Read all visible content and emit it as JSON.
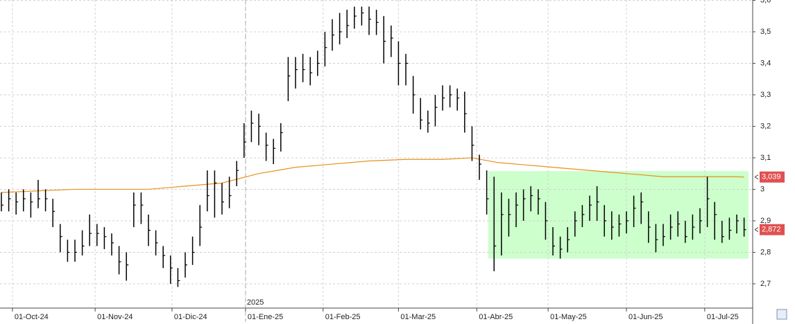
{
  "chart_data": {
    "type": "ohlc",
    "x": [
      0,
      2,
      4,
      6,
      8,
      10,
      12,
      14,
      16,
      18,
      20,
      22,
      24,
      26,
      28,
      30,
      32,
      34,
      36,
      38,
      40,
      42,
      44,
      46,
      48,
      50,
      52,
      54,
      56,
      58,
      60,
      62,
      64,
      66,
      68,
      70,
      72,
      74,
      76,
      78,
      80,
      82,
      84,
      86,
      88,
      90,
      92,
      94,
      96,
      98,
      100,
      102,
      104,
      106,
      108,
      110,
      112,
      114,
      116,
      118,
      120,
      122,
      124,
      126,
      128,
      130,
      132,
      134,
      136,
      138,
      140,
      142,
      144,
      146,
      148,
      150,
      152,
      154,
      156,
      158,
      160,
      162,
      164,
      166,
      168,
      170,
      172,
      174,
      176,
      178,
      180,
      182,
      184,
      186,
      188,
      190,
      192,
      194,
      196,
      198,
      200,
      202
    ],
    "high": [
      2.99,
      3.0,
      2.99,
      3.0,
      2.99,
      3.03,
      3.0,
      2.97,
      2.89,
      2.84,
      2.84,
      2.87,
      2.92,
      2.89,
      2.88,
      2.86,
      2.82,
      2.8,
      2.99,
      2.99,
      2.92,
      2.87,
      2.82,
      2.79,
      2.75,
      2.8,
      2.85,
      2.95,
      3.06,
      3.06,
      3.02,
      3.04,
      3.09,
      3.21,
      3.25,
      3.24,
      3.18,
      3.16,
      3.21,
      3.42,
      3.42,
      3.43,
      3.42,
      3.44,
      3.5,
      3.54,
      3.56,
      3.57,
      3.58,
      3.58,
      3.58,
      3.57,
      3.55,
      3.52,
      3.47,
      3.43,
      3.36,
      3.29,
      3.25,
      3.3,
      3.33,
      3.33,
      3.32,
      3.31,
      3.2,
      3.11,
      3.06,
      3.04,
      2.99,
      2.97,
      2.99,
      3.0,
      3.01,
      3.0,
      2.96,
      2.88,
      2.85,
      2.88,
      2.93,
      2.95,
      2.98,
      3.01,
      2.95,
      2.93,
      2.92,
      2.93,
      2.98,
      2.99,
      2.93,
      2.89,
      2.89,
      2.92,
      2.93,
      2.9,
      2.92,
      2.94,
      3.04,
      2.96,
      2.9,
      2.91,
      2.92,
      2.91
    ],
    "low": [
      2.93,
      2.93,
      2.92,
      2.93,
      2.91,
      2.94,
      2.93,
      2.88,
      2.8,
      2.77,
      2.77,
      2.79,
      2.82,
      2.82,
      2.81,
      2.79,
      2.73,
      2.71,
      2.88,
      2.89,
      2.82,
      2.79,
      2.75,
      2.7,
      2.69,
      2.72,
      2.76,
      2.82,
      2.93,
      2.91,
      2.92,
      2.94,
      3.01,
      3.1,
      3.15,
      3.14,
      3.09,
      3.08,
      3.12,
      3.28,
      3.32,
      3.34,
      3.33,
      3.36,
      3.39,
      3.44,
      3.46,
      3.48,
      3.51,
      3.52,
      3.49,
      3.49,
      3.4,
      3.42,
      3.33,
      3.33,
      3.24,
      3.19,
      3.18,
      3.2,
      3.25,
      3.26,
      3.25,
      3.18,
      3.09,
      3.03,
      2.92,
      2.74,
      2.79,
      2.85,
      2.88,
      2.9,
      2.93,
      2.92,
      2.84,
      2.79,
      2.78,
      2.8,
      2.85,
      2.88,
      2.9,
      2.9,
      2.85,
      2.84,
      2.85,
      2.86,
      2.88,
      2.89,
      2.83,
      2.8,
      2.82,
      2.84,
      2.85,
      2.83,
      2.84,
      2.86,
      2.88,
      2.84,
      2.83,
      2.84,
      2.86,
      2.85
    ],
    "close": [
      2.95,
      2.97,
      2.96,
      2.97,
      2.96,
      2.97,
      2.97,
      2.93,
      2.85,
      2.8,
      2.8,
      2.82,
      2.86,
      2.86,
      2.85,
      2.83,
      2.77,
      2.76,
      2.95,
      2.95,
      2.87,
      2.83,
      2.79,
      2.75,
      2.71,
      2.76,
      2.8,
      2.88,
      2.98,
      3.02,
      2.96,
      2.98,
      3.06,
      3.15,
      3.21,
      3.2,
      3.14,
      3.13,
      3.18,
      3.36,
      3.38,
      3.38,
      3.37,
      3.4,
      3.45,
      3.49,
      3.5,
      3.52,
      3.55,
      3.56,
      3.54,
      3.53,
      3.47,
      3.48,
      3.4,
      3.4,
      3.3,
      3.22,
      3.21,
      3.26,
      3.29,
      3.3,
      3.29,
      3.24,
      3.14,
      3.08,
      2.97,
      2.82,
      2.92,
      2.92,
      2.95,
      2.97,
      2.98,
      2.97,
      2.9,
      2.82,
      2.81,
      2.84,
      2.9,
      2.92,
      2.95,
      2.96,
      2.9,
      2.88,
      2.89,
      2.9,
      2.94,
      2.96,
      2.88,
      2.84,
      2.85,
      2.88,
      2.89,
      2.85,
      2.88,
      2.9,
      2.97,
      2.92,
      2.85,
      2.87,
      2.9,
      2.872
    ],
    "bar_color": "#000000",
    "moving_average": {
      "color": "#e8901a",
      "x": [
        0,
        20,
        40,
        60,
        70,
        80,
        90,
        100,
        110,
        120,
        128,
        135,
        150,
        170,
        180,
        200,
        202
      ],
      "values": [
        2.99,
        3.0,
        3.0,
        3.02,
        3.05,
        3.07,
        3.08,
        3.09,
        3.095,
        3.095,
        3.1,
        3.085,
        3.07,
        3.05,
        3.04,
        3.04,
        3.039
      ]
    },
    "range_box": {
      "color": "#ccffcc",
      "x": [
        132.4,
        203.2
      ],
      "y": [
        2.78,
        3.058
      ]
    },
    "price_markers": [
      {
        "value": 3.039,
        "label": "3,039"
      },
      {
        "value": 2.872,
        "label": "2,872"
      }
    ],
    "marker_color": "#e05050",
    "year_marker": {
      "value": 66.4,
      "label": "2025"
    },
    "xlim": [
      0,
      204.3
    ],
    "xticks": [
      {
        "value": 3,
        "label": "01-Oct-24"
      },
      {
        "value": 25.5,
        "label": "01-Nov-24"
      },
      {
        "value": 46.4,
        "label": "01-Dic-24"
      },
      {
        "value": 66.4,
        "label": "01-Ene-25"
      },
      {
        "value": 87.5,
        "label": "01-Feb-25"
      },
      {
        "value": 108,
        "label": "01-Mar-25"
      },
      {
        "value": 129.3,
        "label": "01-Abr-25"
      },
      {
        "value": 148.7,
        "label": "01-May-25"
      },
      {
        "value": 170,
        "label": "01-Jun-25"
      },
      {
        "value": 191.3,
        "label": "01-Jul-25"
      }
    ],
    "ylim": [
      2.623,
      3.601
    ],
    "yticks": [
      {
        "value": 2.7,
        "label": "2,7"
      },
      {
        "value": 2.8,
        "label": "2,8"
      },
      {
        "value": 2.9,
        "label": "2,9"
      },
      3,
      {
        "value": 3.1,
        "label": "3,1"
      },
      {
        "value": 3.2,
        "label": "3,2"
      },
      {
        "value": 3.3,
        "label": "3,3"
      },
      {
        "value": 3.4,
        "label": "3,4"
      },
      {
        "value": 3.5,
        "label": "3,5"
      },
      {
        "value": 3.6,
        "label": "3,6"
      }
    ],
    "grid": true
  }
}
